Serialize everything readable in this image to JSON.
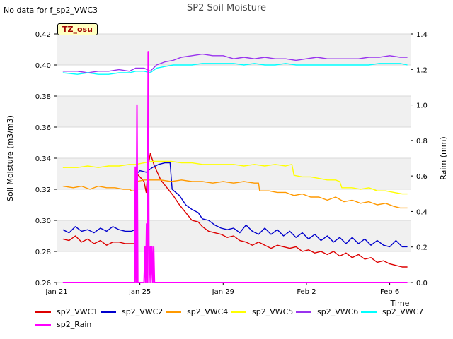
{
  "top_note": "No data for f_sp2_VWC3",
  "badge": "TZ_osu",
  "chart_data": {
    "type": "line",
    "title": "SP2 Soil Moisture",
    "xlabel": "Time",
    "ylabel": "Soil Moisture (m3/m3)",
    "y2label": "Raim (mm)",
    "xlim": [
      0,
      17
    ],
    "ylim": [
      0.26,
      0.42
    ],
    "y2lim": [
      0,
      1.4
    ],
    "x_ticks": [
      {
        "value": 0,
        "label": "Jan 21"
      },
      {
        "value": 4,
        "label": "Jan 25"
      },
      {
        "value": 8,
        "label": "Jan 29"
      },
      {
        "value": 12,
        "label": "Feb 2"
      },
      {
        "value": 16,
        "label": "Feb 6"
      }
    ],
    "y_ticks": [
      "0.26",
      "0.28",
      "0.30",
      "0.32",
      "0.34",
      "0.36",
      "0.38",
      "0.40",
      "0.42"
    ],
    "y2_ticks": [
      "0.0",
      "0.2",
      "0.4",
      "0.6",
      "0.8",
      "1.0",
      "1.2",
      "1.4"
    ],
    "grid": true,
    "legend_position": "bottom",
    "series": [
      {
        "name": "sp2_VWC1",
        "color": "#dd0000",
        "axis": "left",
        "points": [
          [
            0.3,
            0.288
          ],
          [
            0.6,
            0.287
          ],
          [
            0.9,
            0.29
          ],
          [
            1.2,
            0.286
          ],
          [
            1.5,
            0.288
          ],
          [
            1.8,
            0.285
          ],
          [
            2.1,
            0.287
          ],
          [
            2.4,
            0.284
          ],
          [
            2.7,
            0.286
          ],
          [
            3.0,
            0.286
          ],
          [
            3.3,
            0.285
          ],
          [
            3.6,
            0.285
          ],
          [
            3.75,
            0.285
          ],
          [
            3.85,
            0.33
          ],
          [
            4.0,
            0.328
          ],
          [
            4.2,
            0.325
          ],
          [
            4.3,
            0.318
          ],
          [
            4.4,
            0.335
          ],
          [
            4.5,
            0.343
          ],
          [
            4.7,
            0.335
          ],
          [
            5.0,
            0.326
          ],
          [
            5.3,
            0.321
          ],
          [
            5.6,
            0.316
          ],
          [
            5.9,
            0.31
          ],
          [
            6.2,
            0.305
          ],
          [
            6.5,
            0.3
          ],
          [
            6.8,
            0.299
          ],
          [
            7.0,
            0.296
          ],
          [
            7.3,
            0.293
          ],
          [
            7.6,
            0.292
          ],
          [
            7.9,
            0.291
          ],
          [
            8.2,
            0.289
          ],
          [
            8.5,
            0.29
          ],
          [
            8.8,
            0.287
          ],
          [
            9.1,
            0.286
          ],
          [
            9.4,
            0.284
          ],
          [
            9.7,
            0.286
          ],
          [
            10.0,
            0.284
          ],
          [
            10.3,
            0.282
          ],
          [
            10.6,
            0.284
          ],
          [
            10.9,
            0.283
          ],
          [
            11.2,
            0.282
          ],
          [
            11.5,
            0.283
          ],
          [
            11.8,
            0.28
          ],
          [
            12.1,
            0.281
          ],
          [
            12.4,
            0.279
          ],
          [
            12.7,
            0.28
          ],
          [
            13.0,
            0.278
          ],
          [
            13.3,
            0.28
          ],
          [
            13.6,
            0.277
          ],
          [
            13.9,
            0.279
          ],
          [
            14.2,
            0.276
          ],
          [
            14.5,
            0.278
          ],
          [
            14.8,
            0.275
          ],
          [
            15.1,
            0.276
          ],
          [
            15.4,
            0.273
          ],
          [
            15.7,
            0.274
          ],
          [
            16.0,
            0.272
          ],
          [
            16.3,
            0.271
          ],
          [
            16.6,
            0.27
          ],
          [
            16.85,
            0.27
          ]
        ]
      },
      {
        "name": "sp2_VWC2",
        "color": "#0000cc",
        "axis": "left",
        "points": [
          [
            0.3,
            0.294
          ],
          [
            0.6,
            0.292
          ],
          [
            0.9,
            0.296
          ],
          [
            1.2,
            0.293
          ],
          [
            1.5,
            0.294
          ],
          [
            1.8,
            0.292
          ],
          [
            2.1,
            0.295
          ],
          [
            2.4,
            0.293
          ],
          [
            2.7,
            0.296
          ],
          [
            3.0,
            0.294
          ],
          [
            3.3,
            0.293
          ],
          [
            3.6,
            0.293
          ],
          [
            3.75,
            0.294
          ],
          [
            3.85,
            0.33
          ],
          [
            4.0,
            0.332
          ],
          [
            4.3,
            0.331
          ],
          [
            4.6,
            0.334
          ],
          [
            4.9,
            0.336
          ],
          [
            5.2,
            0.337
          ],
          [
            5.45,
            0.337
          ],
          [
            5.55,
            0.32
          ],
          [
            5.9,
            0.316
          ],
          [
            6.2,
            0.31
          ],
          [
            6.5,
            0.307
          ],
          [
            6.8,
            0.305
          ],
          [
            7.0,
            0.301
          ],
          [
            7.3,
            0.3
          ],
          [
            7.6,
            0.297
          ],
          [
            7.9,
            0.295
          ],
          [
            8.2,
            0.294
          ],
          [
            8.5,
            0.295
          ],
          [
            8.8,
            0.292
          ],
          [
            9.1,
            0.297
          ],
          [
            9.4,
            0.293
          ],
          [
            9.7,
            0.291
          ],
          [
            10.0,
            0.295
          ],
          [
            10.3,
            0.291
          ],
          [
            10.6,
            0.294
          ],
          [
            10.9,
            0.29
          ],
          [
            11.2,
            0.293
          ],
          [
            11.5,
            0.289
          ],
          [
            11.8,
            0.292
          ],
          [
            12.1,
            0.288
          ],
          [
            12.4,
            0.291
          ],
          [
            12.7,
            0.287
          ],
          [
            13.0,
            0.29
          ],
          [
            13.3,
            0.286
          ],
          [
            13.6,
            0.289
          ],
          [
            13.9,
            0.285
          ],
          [
            14.2,
            0.289
          ],
          [
            14.5,
            0.285
          ],
          [
            14.8,
            0.288
          ],
          [
            15.1,
            0.284
          ],
          [
            15.4,
            0.287
          ],
          [
            15.7,
            0.284
          ],
          [
            16.0,
            0.283
          ],
          [
            16.3,
            0.287
          ],
          [
            16.6,
            0.283
          ],
          [
            16.85,
            0.283
          ]
        ]
      },
      {
        "name": "sp2_VWC4",
        "color": "#ff9900",
        "axis": "left",
        "points": [
          [
            0.3,
            0.322
          ],
          [
            0.8,
            0.321
          ],
          [
            1.2,
            0.322
          ],
          [
            1.6,
            0.32
          ],
          [
            2.0,
            0.322
          ],
          [
            2.4,
            0.321
          ],
          [
            2.8,
            0.321
          ],
          [
            3.2,
            0.32
          ],
          [
            3.5,
            0.32
          ],
          [
            3.6,
            0.319
          ],
          [
            3.75,
            0.319
          ],
          [
            3.85,
            0.325
          ],
          [
            4.2,
            0.326
          ],
          [
            4.6,
            0.326
          ],
          [
            5.0,
            0.326
          ],
          [
            5.5,
            0.325
          ],
          [
            6.0,
            0.326
          ],
          [
            6.5,
            0.325
          ],
          [
            7.0,
            0.325
          ],
          [
            7.5,
            0.324
          ],
          [
            8.0,
            0.325
          ],
          [
            8.5,
            0.324
          ],
          [
            9.0,
            0.325
          ],
          [
            9.5,
            0.324
          ],
          [
            9.7,
            0.324
          ],
          [
            9.75,
            0.319
          ],
          [
            10.2,
            0.319
          ],
          [
            10.6,
            0.318
          ],
          [
            11.0,
            0.318
          ],
          [
            11.4,
            0.316
          ],
          [
            11.8,
            0.317
          ],
          [
            12.2,
            0.315
          ],
          [
            12.6,
            0.315
          ],
          [
            13.0,
            0.313
          ],
          [
            13.4,
            0.315
          ],
          [
            13.8,
            0.312
          ],
          [
            14.2,
            0.313
          ],
          [
            14.6,
            0.311
          ],
          [
            15.0,
            0.312
          ],
          [
            15.4,
            0.31
          ],
          [
            15.8,
            0.311
          ],
          [
            16.2,
            0.309
          ],
          [
            16.5,
            0.308
          ],
          [
            16.85,
            0.308
          ]
        ]
      },
      {
        "name": "sp2_VWC5",
        "color": "#ffff00",
        "axis": "left",
        "points": [
          [
            0.3,
            0.334
          ],
          [
            1.0,
            0.334
          ],
          [
            1.5,
            0.335
          ],
          [
            2.0,
            0.334
          ],
          [
            2.5,
            0.335
          ],
          [
            3.0,
            0.335
          ],
          [
            3.5,
            0.336
          ],
          [
            3.8,
            0.336
          ],
          [
            4.2,
            0.337
          ],
          [
            4.6,
            0.338
          ],
          [
            5.0,
            0.338
          ],
          [
            5.5,
            0.338
          ],
          [
            6.0,
            0.337
          ],
          [
            6.5,
            0.337
          ],
          [
            7.0,
            0.336
          ],
          [
            7.5,
            0.336
          ],
          [
            8.0,
            0.336
          ],
          [
            8.5,
            0.336
          ],
          [
            9.0,
            0.335
          ],
          [
            9.5,
            0.336
          ],
          [
            10.0,
            0.335
          ],
          [
            10.5,
            0.336
          ],
          [
            11.0,
            0.335
          ],
          [
            11.3,
            0.336
          ],
          [
            11.4,
            0.329
          ],
          [
            11.8,
            0.328
          ],
          [
            12.2,
            0.328
          ],
          [
            12.6,
            0.327
          ],
          [
            13.0,
            0.326
          ],
          [
            13.4,
            0.326
          ],
          [
            13.6,
            0.325
          ],
          [
            13.7,
            0.321
          ],
          [
            14.2,
            0.321
          ],
          [
            14.6,
            0.32
          ],
          [
            15.0,
            0.321
          ],
          [
            15.4,
            0.319
          ],
          [
            15.8,
            0.319
          ],
          [
            16.2,
            0.318
          ],
          [
            16.6,
            0.317
          ],
          [
            16.85,
            0.317
          ]
        ]
      },
      {
        "name": "sp2_VWC6",
        "color": "#9933ee",
        "axis": "left",
        "points": [
          [
            0.3,
            0.396
          ],
          [
            1.0,
            0.396
          ],
          [
            1.5,
            0.395
          ],
          [
            2.0,
            0.396
          ],
          [
            2.5,
            0.396
          ],
          [
            3.0,
            0.397
          ],
          [
            3.5,
            0.396
          ],
          [
            3.8,
            0.398
          ],
          [
            4.2,
            0.398
          ],
          [
            4.5,
            0.396
          ],
          [
            4.8,
            0.4
          ],
          [
            5.2,
            0.402
          ],
          [
            5.6,
            0.403
          ],
          [
            6.0,
            0.405
          ],
          [
            6.5,
            0.406
          ],
          [
            7.0,
            0.407
          ],
          [
            7.5,
            0.406
          ],
          [
            8.0,
            0.406
          ],
          [
            8.5,
            0.404
          ],
          [
            9.0,
            0.405
          ],
          [
            9.5,
            0.404
          ],
          [
            10.0,
            0.405
          ],
          [
            10.5,
            0.404
          ],
          [
            11.0,
            0.404
          ],
          [
            11.5,
            0.403
          ],
          [
            12.0,
            0.404
          ],
          [
            12.5,
            0.405
          ],
          [
            13.0,
            0.404
          ],
          [
            13.5,
            0.404
          ],
          [
            14.0,
            0.404
          ],
          [
            14.5,
            0.404
          ],
          [
            15.0,
            0.405
          ],
          [
            15.5,
            0.405
          ],
          [
            16.0,
            0.406
          ],
          [
            16.5,
            0.405
          ],
          [
            16.85,
            0.405
          ]
        ]
      },
      {
        "name": "sp2_VWC7",
        "color": "#00ffff",
        "axis": "left",
        "points": [
          [
            0.3,
            0.395
          ],
          [
            1.0,
            0.394
          ],
          [
            1.5,
            0.395
          ],
          [
            2.0,
            0.394
          ],
          [
            2.5,
            0.394
          ],
          [
            3.0,
            0.395
          ],
          [
            3.5,
            0.395
          ],
          [
            3.8,
            0.396
          ],
          [
            4.2,
            0.396
          ],
          [
            4.5,
            0.395
          ],
          [
            4.8,
            0.398
          ],
          [
            5.2,
            0.399
          ],
          [
            5.6,
            0.4
          ],
          [
            6.0,
            0.4
          ],
          [
            6.5,
            0.4
          ],
          [
            7.0,
            0.401
          ],
          [
            7.5,
            0.401
          ],
          [
            8.0,
            0.401
          ],
          [
            8.5,
            0.401
          ],
          [
            9.0,
            0.4
          ],
          [
            9.5,
            0.401
          ],
          [
            10.0,
            0.4
          ],
          [
            10.5,
            0.4
          ],
          [
            11.0,
            0.401
          ],
          [
            11.5,
            0.4
          ],
          [
            12.0,
            0.4
          ],
          [
            12.5,
            0.4
          ],
          [
            13.0,
            0.4
          ],
          [
            13.5,
            0.4
          ],
          [
            14.0,
            0.4
          ],
          [
            14.5,
            0.4
          ],
          [
            15.0,
            0.4
          ],
          [
            15.5,
            0.401
          ],
          [
            16.0,
            0.401
          ],
          [
            16.5,
            0.401
          ],
          [
            16.85,
            0.4
          ]
        ]
      },
      {
        "name": "sp2_Rain",
        "color": "#ff00ff",
        "axis": "right",
        "points": [
          [
            0.3,
            0.0
          ],
          [
            3.75,
            0.0
          ],
          [
            3.78,
            0.65
          ],
          [
            3.82,
            0.0
          ],
          [
            3.86,
            1.0
          ],
          [
            3.9,
            0.0
          ],
          [
            4.2,
            0.0
          ],
          [
            4.25,
            0.2
          ],
          [
            4.28,
            0.0
          ],
          [
            4.32,
            0.33
          ],
          [
            4.36,
            0.0
          ],
          [
            4.4,
            1.3
          ],
          [
            4.44,
            0.0
          ],
          [
            4.5,
            0.2
          ],
          [
            4.53,
            0.0
          ],
          [
            4.58,
            0.2
          ],
          [
            4.62,
            0.0
          ],
          [
            4.66,
            0.2
          ],
          [
            4.7,
            0.0
          ],
          [
            16.85,
            0.0
          ]
        ]
      }
    ]
  }
}
